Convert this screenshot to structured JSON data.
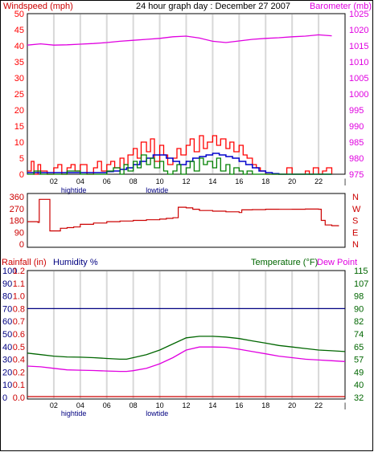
{
  "colors": {
    "frame": "#000000",
    "wind_speed": "#ff0000",
    "wind_avg": "#0000cc",
    "wind_alt": "#008000",
    "barometer": "#e000e0",
    "direction": "#cc0000",
    "rain": "#cc0000",
    "humidity": "#000080",
    "temperature": "#006600",
    "dewpoint": "#e000e0",
    "vgrid": "#d8d8d8"
  },
  "chart_data": [
    {
      "type": "line",
      "name": "wind-barometer",
      "title": "24 hour graph day : December 27 2007",
      "left_axis_label": "Windspeed (mph)",
      "right_axis_label": "Barometer (mb)",
      "y_left": {
        "min": 0,
        "max": 50,
        "ticks": [
          "0",
          "5",
          "10",
          "15",
          "20",
          "25",
          "30",
          "35",
          "40",
          "45",
          "50"
        ]
      },
      "y_right": {
        "min": 975,
        "max": 1025,
        "ticks": [
          "975",
          "980",
          "985",
          "990",
          "995",
          "1000",
          "1005",
          "1010",
          "1015",
          "1020",
          "1025"
        ]
      },
      "x_hours": {
        "min": 0,
        "max": 24
      },
      "x_ticks": [
        {
          "h": 2,
          "label": "02"
        },
        {
          "h": 4,
          "label": "04"
        },
        {
          "h": 6,
          "label": "06"
        },
        {
          "h": 8,
          "label": "08"
        },
        {
          "h": 10,
          "label": "10"
        },
        {
          "h": 12,
          "label": "12"
        },
        {
          "h": 14,
          "label": "14"
        },
        {
          "h": 16,
          "label": "16"
        },
        {
          "h": 18,
          "label": "18"
        },
        {
          "h": 20,
          "label": "20"
        },
        {
          "h": 22,
          "label": "22"
        },
        {
          "h": 24,
          "label": "|"
        }
      ],
      "tide_labels": [
        {
          "h": 3.5,
          "label": "hightide"
        },
        {
          "h": 9.8,
          "label": "lowtide"
        }
      ],
      "series": [
        {
          "key": "gust",
          "x": [
            0,
            0.3,
            0.5,
            0.8,
            1,
            1.5,
            2,
            2.3,
            2.6,
            3,
            3.3,
            3.6,
            4,
            4.5,
            5,
            5.3,
            5.6,
            6,
            6.3,
            6.6,
            7,
            7.3,
            7.6,
            8,
            8.3,
            8.6,
            9,
            9.3,
            9.6,
            10,
            10.3,
            10.6,
            11,
            11.3,
            11.6,
            12,
            12.3,
            12.6,
            13,
            13.3,
            13.6,
            14,
            14.3,
            14.6,
            15,
            15.3,
            15.6,
            16,
            16.3,
            16.6,
            17,
            17.3,
            17.6,
            18,
            18.5,
            19,
            19.3,
            19.6,
            20,
            20.5,
            21,
            21.3,
            21.6,
            22,
            22.3,
            22.6,
            23
          ],
          "y": [
            1,
            4,
            0,
            3,
            1,
            0,
            2,
            3,
            0,
            2,
            3,
            1,
            3,
            0,
            2,
            4,
            1,
            3,
            4,
            2,
            5,
            3,
            6,
            8,
            5,
            10,
            7,
            11,
            4,
            9,
            6,
            3,
            5,
            8,
            6,
            9,
            11,
            7,
            12,
            8,
            10,
            12,
            9,
            11,
            8,
            10,
            7,
            9,
            6,
            5,
            3,
            2,
            1,
            0,
            0,
            0,
            0,
            2,
            0,
            0,
            1,
            0,
            2,
            0,
            1,
            2,
            0
          ]
        },
        {
          "key": "avg",
          "x": [
            0,
            1,
            2,
            3,
            4,
            5,
            6,
            6.5,
            7,
            7.5,
            8,
            8.5,
            9,
            9.5,
            10,
            10.5,
            11,
            11.5,
            12,
            12.5,
            13,
            13.5,
            14,
            14.5,
            15,
            15.5,
            16,
            16.5,
            17,
            17.5,
            18,
            18.5,
            19,
            20,
            21,
            22,
            23
          ],
          "y": [
            0.5,
            0.5,
            0.5,
            0.5,
            0.5,
            0.5,
            0.8,
            1,
            1.5,
            2,
            3,
            4,
            5,
            6,
            6,
            5,
            4,
            3,
            4,
            5,
            5.5,
            6,
            6.5,
            6,
            5.5,
            5,
            4,
            3,
            2,
            1,
            0.5,
            0.2,
            0,
            0,
            0,
            0,
            0
          ]
        },
        {
          "key": "speed",
          "x": [
            0,
            0.5,
            1,
            2,
            3,
            4,
            5,
            6,
            6.5,
            7,
            7.3,
            7.6,
            8,
            8.3,
            8.6,
            9,
            9.3,
            9.6,
            10,
            10.3,
            10.6,
            11,
            11.3,
            11.6,
            12,
            12.3,
            12.6,
            13,
            13.3,
            13.6,
            14,
            14.3,
            14.6,
            15,
            15.3,
            15.6,
            16,
            16.3,
            16.6,
            17,
            17.5,
            18,
            19,
            20,
            21,
            22,
            23
          ],
          "y": [
            0,
            1,
            0,
            0,
            1,
            0,
            0,
            1,
            2,
            0,
            3,
            1,
            4,
            2,
            6,
            3,
            5,
            2,
            4,
            1,
            0,
            1,
            3,
            0,
            2,
            4,
            1,
            5,
            3,
            4,
            2,
            5,
            1,
            3,
            0,
            2,
            1,
            0,
            1,
            0,
            0,
            0,
            0,
            0,
            0,
            0,
            0
          ]
        },
        {
          "key": "barometer",
          "x": [
            0,
            1,
            2,
            3,
            4,
            5,
            6,
            7,
            8,
            9,
            10,
            11,
            12,
            13,
            14,
            15,
            16,
            17,
            18,
            19,
            20,
            21,
            22,
            23
          ],
          "y": [
            1015.2,
            1015.6,
            1015.2,
            1015.3,
            1015.5,
            1015.7,
            1016,
            1016.4,
            1016.7,
            1017,
            1017.3,
            1017.8,
            1018,
            1017.4,
            1016.4,
            1016,
            1016.5,
            1017,
            1017.3,
            1017.5,
            1017.8,
            1018,
            1018.4,
            1018.1
          ]
        }
      ]
    },
    {
      "type": "line",
      "name": "wind-direction",
      "y_ticks": [
        "0",
        "90",
        "180",
        "270",
        "360"
      ],
      "compass": [
        "N",
        "W",
        "S",
        "E",
        "N"
      ],
      "y_range": [
        0,
        360
      ],
      "x": [
        0,
        0.8,
        0.9,
        1.6,
        1.7,
        2.5,
        3,
        3.5,
        4,
        5,
        6,
        7,
        8,
        9,
        10,
        10.5,
        11,
        11.3,
        11.4,
        12,
        12.5,
        13,
        14,
        15,
        16,
        16.2,
        17,
        18,
        19,
        20,
        21,
        22,
        22.2,
        22.5,
        23,
        23.5
      ],
      "y": [
        170,
        165,
        340,
        340,
        100,
        120,
        125,
        130,
        150,
        160,
        170,
        175,
        180,
        185,
        190,
        195,
        200,
        200,
        280,
        275,
        265,
        255,
        250,
        245,
        240,
        260,
        262,
        265,
        264,
        265,
        266,
        265,
        180,
        145,
        140,
        135
      ]
    },
    {
      "type": "line",
      "name": "rain-humidity-temperature",
      "rain_label": "Rainfall (in)",
      "humidity_label": "Humidity %",
      "temperature_label": "Temperature (°F)",
      "dewpoint_label": "Dew Point",
      "humidity_ticks": [
        "0",
        "10",
        "20",
        "30",
        "40",
        "50",
        "60",
        "70",
        "80",
        "90",
        "100"
      ],
      "rain_ticks": [
        "0.0",
        "0.1",
        "0.2",
        "0.4",
        "0.5",
        "0.6",
        "0.7",
        "0.8",
        "1.0",
        "1.1",
        "1.2"
      ],
      "temp_ticks": [
        "32",
        "40",
        "49",
        "57",
        "65",
        "74",
        "82",
        "90",
        "98",
        "107",
        "115"
      ],
      "temp_range": [
        32,
        115
      ],
      "series": [
        {
          "key": "humidity",
          "x": [
            0,
            24
          ],
          "y": [
            70,
            70
          ]
        },
        {
          "key": "rain",
          "x": [
            0,
            24
          ],
          "y": [
            0,
            0
          ]
        },
        {
          "key": "temperature",
          "x": [
            0,
            1,
            2,
            3,
            4,
            5,
            6,
            7,
            7.5,
            8,
            9,
            10,
            11,
            12,
            13,
            14,
            15,
            16,
            17,
            18,
            19,
            20,
            21,
            22,
            23,
            24
          ],
          "y": [
            61,
            60,
            59,
            58.5,
            58.3,
            58,
            57.5,
            57,
            57,
            58,
            60,
            63,
            67,
            71,
            72,
            72,
            71.5,
            70.5,
            69,
            67.5,
            66,
            65,
            64,
            63,
            62.5,
            62
          ]
        },
        {
          "key": "dewpoint",
          "x": [
            0,
            1,
            2,
            3,
            4,
            5,
            6,
            7,
            7.5,
            8,
            9,
            10,
            11,
            12,
            13,
            14,
            15,
            16,
            17,
            18,
            19,
            20,
            21,
            22,
            23,
            24
          ],
          "y": [
            52.5,
            52,
            51,
            50,
            49.8,
            49.6,
            49.3,
            49,
            49,
            49.5,
            51,
            54,
            58,
            63,
            65,
            65,
            64.8,
            63.5,
            62,
            60.5,
            59,
            58,
            57,
            56.5,
            56,
            55.5
          ]
        }
      ]
    }
  ]
}
